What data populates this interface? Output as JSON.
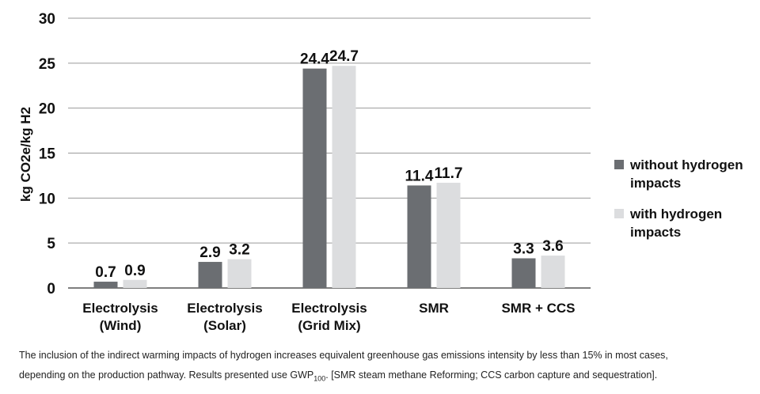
{
  "chart_data": {
    "type": "bar",
    "title": "",
    "xlabel": "",
    "ylabel": "kg CO2e/kg H2",
    "ylim": [
      0,
      30
    ],
    "yticks": [
      0,
      5,
      10,
      15,
      20,
      25,
      30
    ],
    "grid": true,
    "legend_position": "right",
    "categories": [
      [
        "Electrolysis",
        "(Wind)"
      ],
      [
        "Electrolysis",
        "(Solar)"
      ],
      [
        "Electrolysis",
        "(Grid Mix)"
      ],
      [
        "SMR"
      ],
      [
        "SMR + CCS"
      ]
    ],
    "series": [
      {
        "name": "without hydrogen impacts",
        "legend_lines": [
          "without hydrogen",
          "impacts"
        ],
        "color": "#6b6e72",
        "values": [
          0.7,
          2.9,
          24.4,
          11.4,
          3.3
        ],
        "labels": [
          "0.7",
          "2.9",
          "24.4",
          "11.4",
          "3.3"
        ]
      },
      {
        "name": "with hydrogen impacts",
        "legend_lines": [
          "with hydrogen",
          "impacts"
        ],
        "color": "#dcdddf",
        "values": [
          0.9,
          3.2,
          24.7,
          11.7,
          3.6
        ],
        "labels": [
          "0.9",
          "3.2",
          "24.7",
          "11.7",
          "3.6"
        ]
      }
    ]
  },
  "caption": {
    "line1": "The inclusion of the indirect warming impacts of hydrogen increases equivalent greenhouse gas emissions intensity by less than 15% in most cases,",
    "line2_pre": "depending on the production pathway. Results presented use GWP",
    "line2_sub": "100",
    "line2_post": ". [SMR steam methane Reforming; CCS carbon capture and sequestration]."
  }
}
